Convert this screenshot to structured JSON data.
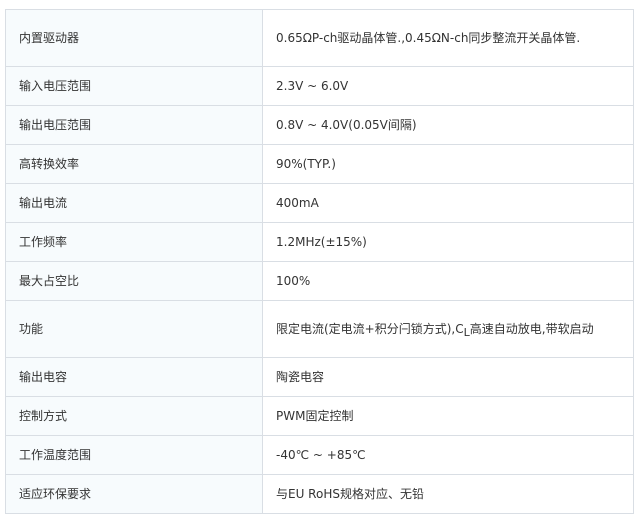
{
  "rows": [
    {
      "label": "内置驱动器",
      "value": "0.65ΩP-ch驱动晶体管.,0.45ΩN-ch同步整流开关晶体管."
    },
    {
      "label": "输入电压范围",
      "value": "2.3V ~ 6.0V"
    },
    {
      "label": "输出电压范围",
      "value": "0.8V ~ 4.0V(0.05V间隔)"
    },
    {
      "label": "高转换效率",
      "value": "90%(TYP.)"
    },
    {
      "label": "输出电流",
      "value": "400mA"
    },
    {
      "label": "工作频率",
      "value": "1.2MHz(±15%)"
    },
    {
      "label": "最大占空比",
      "value": "100%"
    },
    {
      "label": "功能",
      "value_before": "限定电流(定电流+积分闩锁方式),C",
      "value_sub": "L",
      "value_after": "高速自动放电,带软启动"
    },
    {
      "label": "输出电容",
      "value": "陶瓷电容"
    },
    {
      "label": "控制方式",
      "value": "PWM固定控制"
    },
    {
      "label": "工作温度范围",
      "value": "-40℃ ~ +85℃"
    },
    {
      "label": "适应环保要求",
      "value": "与EU RoHS规格对应、无铅"
    }
  ]
}
